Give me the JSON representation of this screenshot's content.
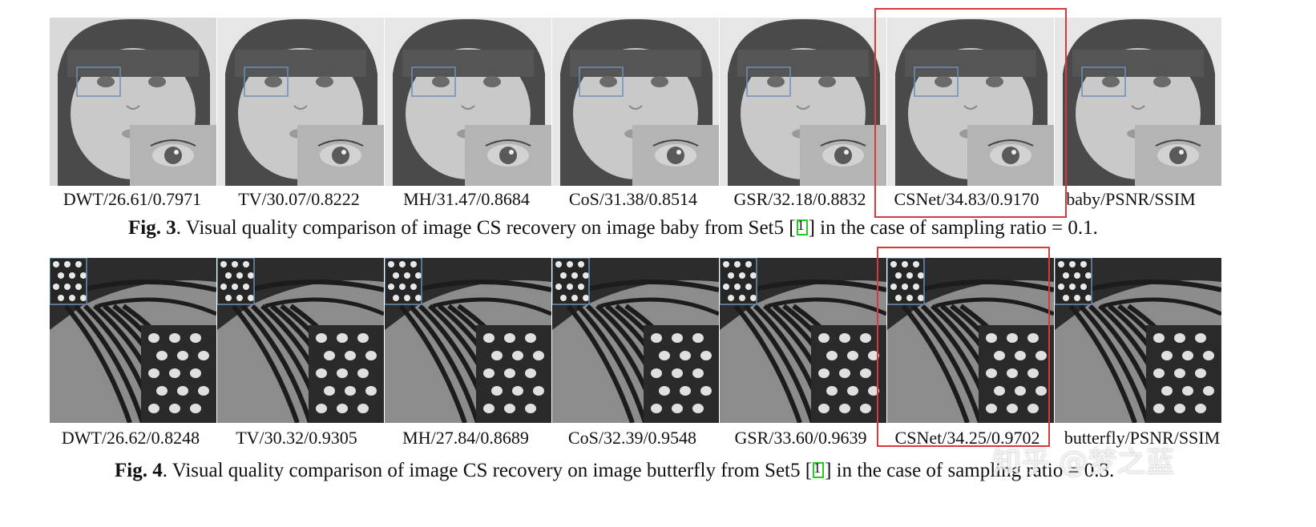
{
  "figure3": {
    "labels": [
      "DWT/26.61/0.7971",
      "TV/30.07/0.8222",
      "MH/31.47/0.8684",
      "CoS/31.38/0.8514",
      "GSR/32.18/0.8832",
      "CSNet/34.83/0.9170",
      "baby/PSNR/SSIM"
    ],
    "caption_prefix": "Fig. 3",
    "caption_before_cite": ". Visual quality comparison of image CS recovery on image baby from Set5 [",
    "cite": "1",
    "caption_after_cite": "] in the case of sampling ratio = 0.1."
  },
  "figure4": {
    "labels": [
      "DWT/26.62/0.8248",
      "TV/30.32/0.9305",
      "MH/27.84/0.8689",
      "CoS/32.39/0.9548",
      "GSR/33.60/0.9639",
      "CSNet/34.25/0.9702",
      "butterfly/PSNR/SSIM"
    ],
    "caption_prefix": "Fig. 4",
    "caption_before_cite": ". Visual quality comparison of image CS recovery on image butterfly from Set5 [",
    "cite": "1",
    "caption_after_cite": "] in the case of sampling ratio = 0.3."
  },
  "watermark": "知乎 @梦之蓝",
  "colors": {
    "highlight_box": "#d63a3a",
    "zoom_box": "#6c8fb8",
    "cite_box": "#22cc22"
  }
}
